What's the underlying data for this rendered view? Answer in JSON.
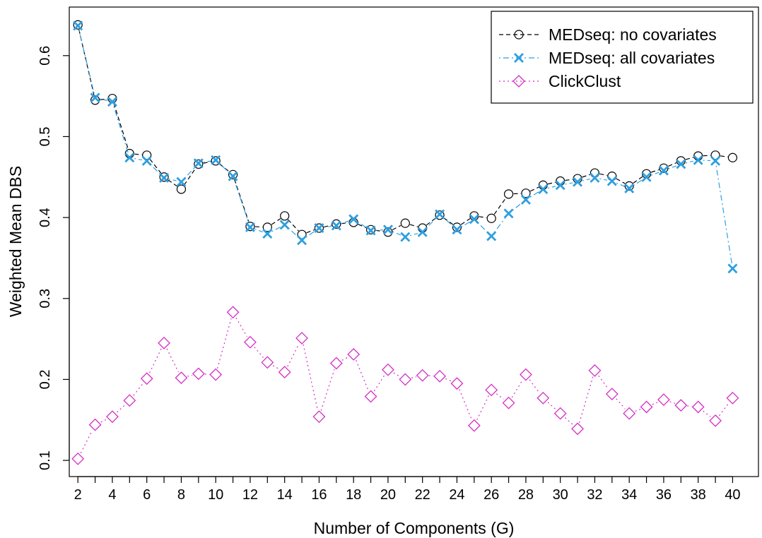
{
  "chart_data": {
    "type": "line",
    "title": "",
    "xlabel": "Number of Components (G)",
    "ylabel": "Weighted Mean DBS",
    "xlim": [
      1.5,
      41.5
    ],
    "ylim": [
      0.08,
      0.66
    ],
    "x_ticks": [
      "2",
      "4",
      "6",
      "8",
      "10",
      "12",
      "14",
      "16",
      "18",
      "20",
      "22",
      "24",
      "26",
      "28",
      "30",
      "32",
      "34",
      "36",
      "38",
      "40"
    ],
    "y_ticks": [
      "0.1",
      "0.2",
      "0.3",
      "0.4",
      "0.5",
      "0.6"
    ],
    "grid": false,
    "legend_position": "top-right",
    "x": [
      2,
      3,
      4,
      5,
      6,
      7,
      8,
      9,
      10,
      11,
      12,
      13,
      14,
      15,
      16,
      17,
      18,
      19,
      20,
      21,
      22,
      23,
      24,
      25,
      26,
      27,
      28,
      29,
      30,
      31,
      32,
      33,
      34,
      35,
      36,
      37,
      38,
      39,
      40
    ],
    "series": [
      {
        "name": "MEDseq: no covariates",
        "color": "#000000",
        "marker": "circle",
        "line_style": "dashed",
        "values": [
          0.638,
          0.545,
          0.547,
          0.479,
          0.477,
          0.45,
          0.435,
          0.466,
          0.47,
          0.453,
          0.389,
          0.388,
          0.402,
          0.379,
          0.387,
          0.392,
          0.394,
          0.385,
          0.382,
          0.393,
          0.387,
          0.403,
          0.388,
          0.402,
          0.399,
          0.429,
          0.43,
          0.44,
          0.445,
          0.448,
          0.455,
          0.451,
          0.439,
          0.454,
          0.461,
          0.47,
          0.476,
          0.477,
          0.474
        ]
      },
      {
        "name": "MEDseq: all covariates",
        "color": "#2e9fdf",
        "marker": "x",
        "line_style": "dotdash",
        "values": [
          0.637,
          0.548,
          0.543,
          0.474,
          0.47,
          0.449,
          0.444,
          0.467,
          0.471,
          0.451,
          0.388,
          0.38,
          0.391,
          0.372,
          0.387,
          0.39,
          0.398,
          0.384,
          0.385,
          0.376,
          0.382,
          0.404,
          0.385,
          0.398,
          0.377,
          0.405,
          0.422,
          0.435,
          0.44,
          0.444,
          0.449,
          0.445,
          0.436,
          0.45,
          0.458,
          0.466,
          0.471,
          0.47,
          0.337
        ]
      },
      {
        "name": "ClickClust",
        "color": "#d62fc4",
        "marker": "diamond",
        "line_style": "dotted",
        "values": [
          0.102,
          0.144,
          0.154,
          0.174,
          0.201,
          0.245,
          0.202,
          0.207,
          0.206,
          0.283,
          0.246,
          0.221,
          0.209,
          0.251,
          0.154,
          0.22,
          0.231,
          0.179,
          0.212,
          0.2,
          0.205,
          0.204,
          0.195,
          0.143,
          0.187,
          0.171,
          0.206,
          0.177,
          0.158,
          0.139,
          0.211,
          0.182,
          0.158,
          0.166,
          0.175,
          0.168,
          0.166,
          0.149,
          0.177
        ]
      }
    ]
  }
}
